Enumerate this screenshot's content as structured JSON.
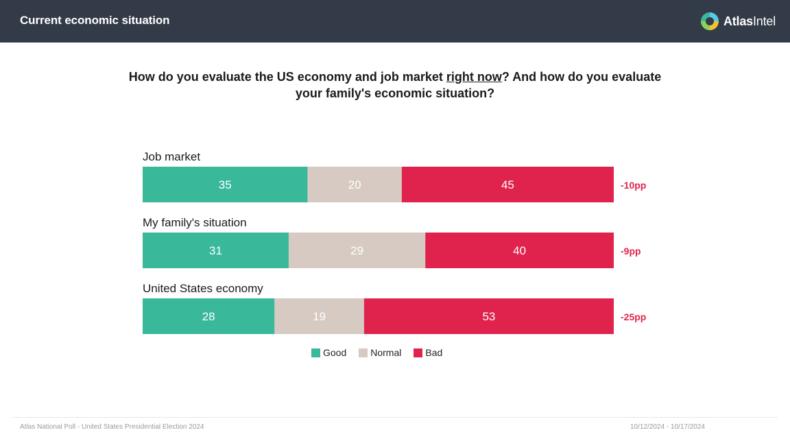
{
  "header": {
    "title": "Current economic situation",
    "brand_bold": "Atlas",
    "brand_regular": "Intel"
  },
  "question": {
    "part1": "How do you evaluate the US economy and job market ",
    "underlined": "right now",
    "part2": "? And how do you evaluate your family's economic situation?"
  },
  "colors": {
    "header_bg": "#343b48",
    "good": "#3ab89a",
    "normal": "#d6cac3",
    "bad": "#e0234d",
    "net": "#e0234d"
  },
  "chart_data": {
    "type": "bar",
    "orientation": "horizontal",
    "stacked": true,
    "normalized_to": 100,
    "categories": [
      "Job market",
      "My family's situation",
      "United States economy"
    ],
    "series": [
      {
        "name": "Good",
        "values": [
          35,
          31,
          28
        ]
      },
      {
        "name": "Normal",
        "values": [
          20,
          29,
          19
        ]
      },
      {
        "name": "Bad",
        "values": [
          45,
          40,
          53
        ]
      }
    ],
    "net_labels": [
      "-10pp",
      "-9pp",
      "-25pp"
    ],
    "title": "",
    "xlabel": "",
    "ylabel": "",
    "xlim": [
      0,
      100
    ],
    "legend": "bottom-center"
  },
  "legend": {
    "items": [
      "Good",
      "Normal",
      "Bad"
    ]
  },
  "footer": {
    "left": "Atlas National Poll - United States Presidential Election 2024",
    "right": "10/12/2024 - 10/17/2024"
  }
}
